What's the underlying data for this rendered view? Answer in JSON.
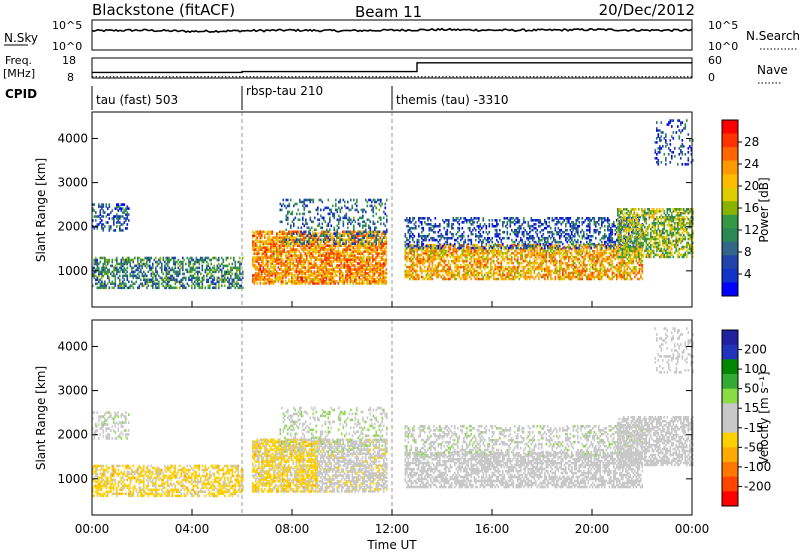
{
  "header": {
    "station": "Blackstone (fitACF)",
    "beam": "Beam 11",
    "date": "20/Dec/2012"
  },
  "top_panels": {
    "noise": {
      "left_label": "N.Sky",
      "left_ticks": [
        "10^5",
        "10^0"
      ],
      "right_ticks": [
        "10^5",
        "10^0"
      ],
      "right_label": "N.Search"
    },
    "freq": {
      "left_label": "Freq.",
      "left_unit": "[MHz]",
      "left_ticks": [
        "18",
        "8"
      ],
      "right_ticks": [
        "60",
        "0"
      ],
      "right_label": "Nave"
    },
    "cpid": {
      "label": "CPID"
    }
  },
  "cpid_segments": [
    {
      "label": "tau (fast) 503",
      "start_hour": 0
    },
    {
      "label": "rbsp-tau 210",
      "start_hour": 6
    },
    {
      "label": "themis (tau) -3310",
      "start_hour": 12
    }
  ],
  "colorbars": {
    "power": {
      "title": "Power [dB]",
      "ticks": [
        "28",
        "24",
        "20",
        "16",
        "12",
        "8",
        "4"
      ],
      "colors": [
        "#ff0000",
        "#ff3300",
        "#ff6600",
        "#ff9900",
        "#ffbb00",
        "#ddcc00",
        "#88b400",
        "#339944",
        "#2a8855",
        "#336688",
        "#2244aa",
        "#1133cc",
        "#0000ff"
      ]
    },
    "velocity": {
      "title": "Velocity [m s⁻¹]",
      "ticks": [
        "200",
        "100",
        "50",
        "15",
        "-15",
        "-50",
        "-100",
        "-200"
      ],
      "colors": [
        "#2020a0",
        "#2233bb",
        "#008800",
        "#33aa33",
        "#88dd44",
        "#c8c8c8",
        "#c8c8c8",
        "#ffd000",
        "#ffaa00",
        "#ff7700",
        "#ff4400",
        "#ff0000"
      ]
    }
  },
  "chart_data": [
    {
      "type": "line",
      "title": "N.Sky / N.Search",
      "x": [
        0,
        2,
        4,
        6,
        8,
        10,
        12,
        14,
        16,
        18,
        20,
        22,
        24
      ],
      "series": [
        {
          "name": "N.Sky",
          "values": [
            3.2,
            3.3,
            3.1,
            3.2,
            3.3,
            3.2,
            3.3,
            3.4,
            3.3,
            3.3,
            3.4,
            3.3,
            3.3
          ]
        }
      ],
      "xlim": [
        0,
        24
      ],
      "ylim": [
        0,
        5
      ],
      "yscale": "log"
    },
    {
      "type": "line",
      "title": "Freq. / Nave",
      "x": [
        0,
        6,
        6,
        13,
        13,
        24
      ],
      "series": [
        {
          "name": "Freq.",
          "values": [
            10.8,
            10.8,
            11.2,
            11.2,
            15.6,
            15.6
          ]
        },
        {
          "name": "Nave",
          "values": [
            4,
            4,
            4,
            4,
            4,
            4
          ]
        }
      ],
      "xlim": [
        0,
        24
      ],
      "ylim": [
        8,
        18
      ]
    },
    {
      "type": "heatmap",
      "xlabel": "Time UT",
      "ylabel": "Slant Range [km]",
      "zlabel": "Power [dB]",
      "xlim": [
        0,
        24
      ],
      "ylim": [
        180,
        4600
      ],
      "zlim": [
        0,
        32
      ],
      "x_ticks": [
        "00:00",
        "04:00",
        "08:00",
        "12:00",
        "16:00",
        "20:00",
        "00:00"
      ],
      "y_ticks": [
        1000,
        2000,
        3000,
        4000
      ],
      "regions": [
        {
          "t0": 0.0,
          "t1": 6.0,
          "r0": 600,
          "r1": 1300,
          "z": 10,
          "density": 0.5
        },
        {
          "t0": 0.0,
          "t1": 1.5,
          "r0": 1900,
          "r1": 2500,
          "z": 6,
          "density": 0.35
        },
        {
          "t0": 6.4,
          "t1": 11.8,
          "r0": 700,
          "r1": 1900,
          "z": 24,
          "density": 0.7
        },
        {
          "t0": 7.5,
          "t1": 11.8,
          "r0": 1600,
          "r1": 2600,
          "z": 8,
          "density": 0.25
        },
        {
          "t0": 12.5,
          "t1": 22.0,
          "r0": 800,
          "r1": 1600,
          "z": 22,
          "density": 0.6
        },
        {
          "t0": 12.5,
          "t1": 22.0,
          "r0": 1500,
          "r1": 2200,
          "z": 6,
          "density": 0.35
        },
        {
          "t0": 21.0,
          "t1": 24.0,
          "r0": 1300,
          "r1": 2400,
          "z": 16,
          "density": 0.6
        },
        {
          "t0": 22.5,
          "t1": 24.0,
          "r0": 3400,
          "r1": 4400,
          "z": 5,
          "density": 0.2
        }
      ]
    },
    {
      "type": "heatmap",
      "xlabel": "Time UT",
      "ylabel": "Slant Range [km]",
      "zlabel": "Velocity [m s⁻¹]",
      "xlim": [
        0,
        24
      ],
      "ylim": [
        180,
        4600
      ],
      "zlim": [
        -250,
        250
      ],
      "x_ticks": [
        "00:00",
        "04:00",
        "08:00",
        "12:00",
        "16:00",
        "20:00",
        "00:00"
      ],
      "y_ticks": [
        1000,
        2000,
        3000,
        4000
      ],
      "regions": [
        {
          "t0": 0.0,
          "t1": 6.0,
          "r0": 600,
          "r1": 1300,
          "z": -60,
          "density": 0.5
        },
        {
          "t0": 0.0,
          "t1": 1.5,
          "r0": 1900,
          "r1": 2500,
          "z": 20,
          "density": 0.35
        },
        {
          "t0": 6.4,
          "t1": 9.0,
          "r0": 700,
          "r1": 1900,
          "z": -60,
          "density": 0.7
        },
        {
          "t0": 9.0,
          "t1": 11.8,
          "r0": 700,
          "r1": 1900,
          "z": -20,
          "density": 0.6
        },
        {
          "t0": 7.5,
          "t1": 11.8,
          "r0": 1600,
          "r1": 2600,
          "z": 30,
          "density": 0.25
        },
        {
          "t0": 12.5,
          "t1": 22.0,
          "r0": 800,
          "r1": 1600,
          "z": 0,
          "density": 0.6
        },
        {
          "t0": 12.5,
          "t1": 22.0,
          "r0": 1500,
          "r1": 2200,
          "z": 20,
          "density": 0.35
        },
        {
          "t0": 21.0,
          "t1": 24.0,
          "r0": 1300,
          "r1": 2400,
          "z": 0,
          "density": 0.6
        },
        {
          "t0": 22.5,
          "t1": 24.0,
          "r0": 3400,
          "r1": 4400,
          "z": 0,
          "density": 0.2
        }
      ]
    }
  ]
}
